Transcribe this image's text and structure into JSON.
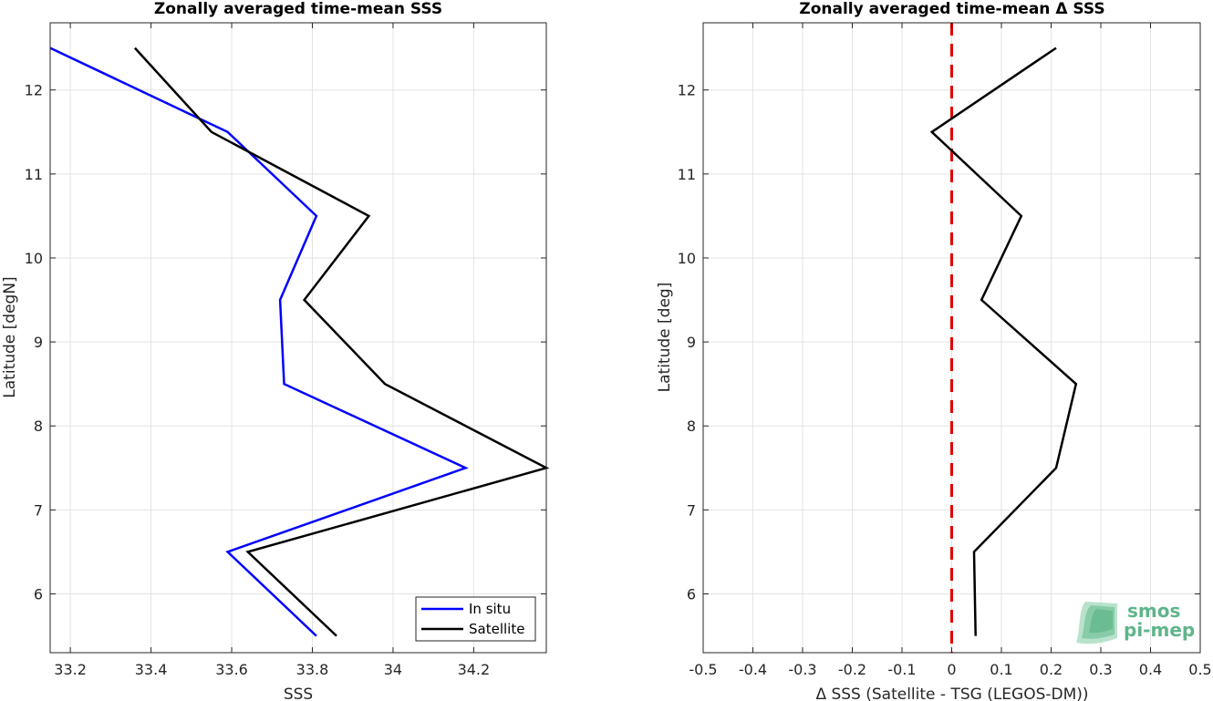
{
  "chart_data": [
    {
      "type": "line",
      "title": "Zonally averaged time-mean SSS",
      "xlabel": "SSS",
      "ylabel": "Latitude [degN]",
      "xlim": [
        33.15,
        34.38
      ],
      "ylim": [
        5.3,
        12.8
      ],
      "xticks": [
        33.2,
        33.4,
        33.6,
        33.8,
        34,
        34.2
      ],
      "xtick_labels": [
        "33.2",
        "33.4",
        "33.6",
        "33.8",
        "34",
        "34.2"
      ],
      "yticks": [
        6,
        7,
        8,
        9,
        10,
        11,
        12
      ],
      "ytick_labels": [
        "6",
        "7",
        "8",
        "9",
        "10",
        "11",
        "12"
      ],
      "grid": true,
      "legend_position": "bottom-right",
      "series": [
        {
          "name": "In situ",
          "color": "#0000ff",
          "x": [
            33.15,
            33.59,
            33.81,
            33.72,
            33.73,
            34.18,
            33.59,
            33.81
          ],
          "y": [
            12.5,
            11.5,
            10.5,
            9.5,
            8.5,
            7.5,
            6.5,
            5.5
          ]
        },
        {
          "name": "Satellite",
          "color": "#000000",
          "x": [
            33.36,
            33.55,
            33.94,
            33.78,
            33.98,
            34.38,
            33.64,
            33.86
          ],
          "y": [
            12.5,
            11.5,
            10.5,
            9.5,
            8.5,
            7.5,
            6.5,
            5.5
          ]
        }
      ]
    },
    {
      "type": "line",
      "title": "Zonally averaged time-mean Δ SSS",
      "xlabel": "Δ SSS (Satellite - TSG (LEGOS-DM))",
      "ylabel": "Latitude [deg]",
      "xlim": [
        -0.5,
        0.5
      ],
      "ylim": [
        5.3,
        12.8
      ],
      "xticks": [
        -0.5,
        -0.4,
        -0.3,
        -0.2,
        -0.1,
        0,
        0.1,
        0.2,
        0.3,
        0.4,
        0.5
      ],
      "xtick_labels": [
        "-0.5",
        "-0.4",
        "-0.3",
        "-0.2",
        "-0.1",
        "0",
        "0.1",
        "0.2",
        "0.3",
        "0.4",
        "0.5"
      ],
      "yticks": [
        6,
        7,
        8,
        9,
        10,
        11,
        12
      ],
      "ytick_labels": [
        "6",
        "7",
        "8",
        "9",
        "10",
        "11",
        "12"
      ],
      "grid": true,
      "reference_line": {
        "x": 0,
        "color": "#e00000",
        "style": "dashed"
      },
      "series": [
        {
          "color": "#000000",
          "x": [
            0.21,
            -0.04,
            0.14,
            0.06,
            0.25,
            0.21,
            0.045,
            0.048
          ],
          "y": [
            12.5,
            11.5,
            10.5,
            9.5,
            8.5,
            7.5,
            6.5,
            5.5
          ]
        }
      ]
    }
  ],
  "logo": {
    "line1": "smos",
    "line2": "pi-mep",
    "color": "#5fb58a"
  }
}
